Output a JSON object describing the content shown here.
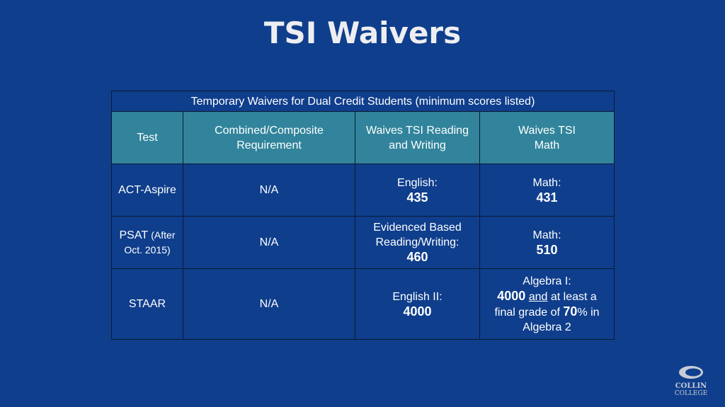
{
  "title": "TSI Waivers",
  "table": {
    "caption": "Temporary Waivers for Dual Credit Students (minimum scores listed)",
    "header": [
      "Test",
      "Combined/Composite Requirement",
      "Waives TSI Reading and Writing",
      "Waives TSI Math"
    ],
    "rows": [
      [
        {
          "name": "ACT-Aspire"
        },
        {
          "text": "N/A"
        },
        {
          "label": "English:",
          "score": 435
        },
        {
          "label": "Math:",
          "score": 431
        }
      ],
      [
        {
          "name": "PSAT",
          "note": "(After Oct. 2015)"
        },
        {
          "text": "N/A"
        },
        {
          "label": "Evidenced Based Reading/Writing:",
          "score": 460
        },
        {
          "label": "Math:",
          "score": 510
        }
      ],
      [
        {
          "name": "STAAR"
        },
        {
          "text": "N/A"
        },
        {
          "label": "English II:",
          "score": 4000
        },
        {
          "label": "Algebra I:",
          "score": 4000,
          "connector": "and",
          "rest": "at least a final grade of",
          "grade": 70,
          "grade_suffix": "% in Algebra 2"
        }
      ]
    ]
  },
  "logo": {
    "line1": "COLLIN",
    "line2": "COLLEGE"
  }
}
